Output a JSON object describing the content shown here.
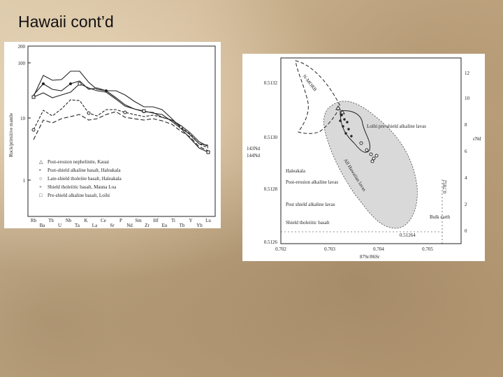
{
  "slide": {
    "title": "Hawaii cont’d"
  },
  "left_figure": {
    "y_label": "Rock/primitive mantle",
    "y_ticks": [
      "200",
      "100",
      "10",
      "1"
    ],
    "x_elements": [
      "Rb",
      "Ba",
      "Th",
      "U",
      "Nb",
      "Ta",
      "K",
      "La",
      "Ce",
      "Sr",
      "P",
      "Nd",
      "Sm",
      "Zr",
      "Hf",
      "Eu",
      "Ti",
      "Tb",
      "Y",
      "Yb",
      "Lu"
    ],
    "legend": [
      "Post-erosion nephelinite, Kauai",
      "Post-shield alkaline basalt, Haleakala",
      "Late-shield tholeiite basalt, Haleakala",
      "Shield tholeiitic basalt, Mauna Loa",
      "Pre-shield alkaline basalt, Loihi"
    ]
  },
  "right_figure": {
    "y_left_ticks": [
      "0.5132",
      "0.5130",
      "0.5128",
      "0.5126"
    ],
    "y_right_ticks": [
      "12",
      "10",
      "8",
      "6",
      "4",
      "2",
      "0"
    ],
    "x_ticks": [
      "0.702",
      "0.703",
      "0.704",
      "0.705"
    ],
    "x_label": "87Sr/86Sr",
    "y_left_label_top": "143Nd",
    "y_left_label_bottom": "144Nd",
    "y_right_label": "εNd",
    "annotations": {
      "morb": "N-MORB",
      "loihi": "Loihi pre-shield alkaline lavas",
      "all": "All Hawaiian lavas",
      "haleakala": "Haleakala",
      "post_erosion": "Post-erosion alkaline lavas",
      "post_shield": "Post shield alkaline lavas",
      "shield": "Shield tholeiitic basalt",
      "bulk_earth": "Bulk earth",
      "nd_bulk": "0.51264",
      "sr_bulk": "0.7052"
    }
  }
}
